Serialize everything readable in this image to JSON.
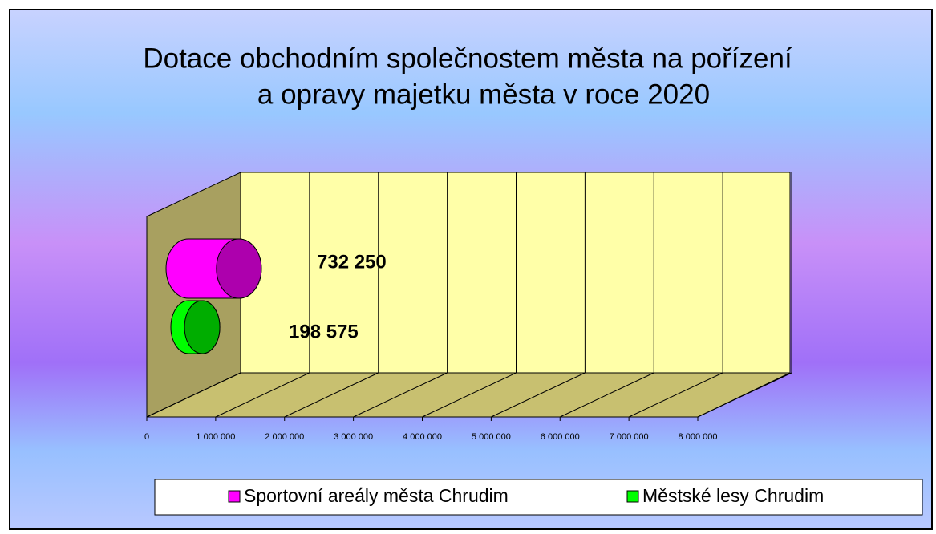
{
  "chart_data": {
    "type": "bar3d",
    "orientation": "horizontal",
    "title": [
      "Dotace obchodním společnostem města na pořízení",
      "a opravy majetku města v roce 2020"
    ],
    "series": [
      {
        "name": "Sportovní areály města Chrudim",
        "color": "#ff00ff",
        "values": [
          732250
        ],
        "value_labels": [
          "732 250"
        ]
      },
      {
        "name": "Městské lesy Chrudim",
        "color": "#00ff00",
        "values": [
          198575
        ],
        "value_labels": [
          "198 575"
        ]
      }
    ],
    "xlim": [
      0,
      8000000
    ],
    "xticks": [
      0,
      {
        "value": 1000000,
        "label": "1 000 000"
      },
      {
        "value": 2000000,
        "label": "2 000 000"
      },
      {
        "value": 3000000,
        "label": "3 000 000"
      },
      {
        "value": 4000000,
        "label": "4 000 000"
      },
      {
        "value": 5000000,
        "label": "5 000 000"
      },
      {
        "value": 6000000,
        "label": "6 000 000"
      },
      {
        "value": 7000000,
        "label": "7 000 000"
      },
      {
        "value": 8000000,
        "label": "8 000 000"
      }
    ],
    "grid": true,
    "legend": "bottom"
  }
}
